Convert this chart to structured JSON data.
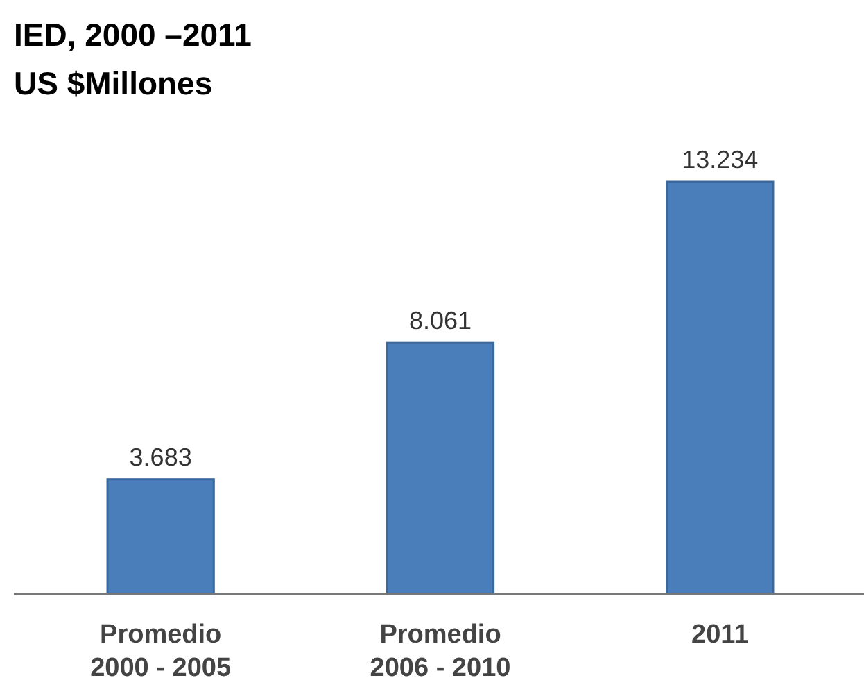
{
  "chart_data": {
    "type": "bar",
    "title": "IED, 2000 –2011",
    "subtitle": "US $Millones",
    "categories": [
      "Promedio\n2000 - 2005",
      "Promedio\n2006 - 2010",
      "2011"
    ],
    "values": [
      3683,
      8061,
      13234
    ],
    "value_labels": [
      "3.683",
      "8.061",
      "13.234"
    ],
    "color": "#4a7ebb"
  }
}
